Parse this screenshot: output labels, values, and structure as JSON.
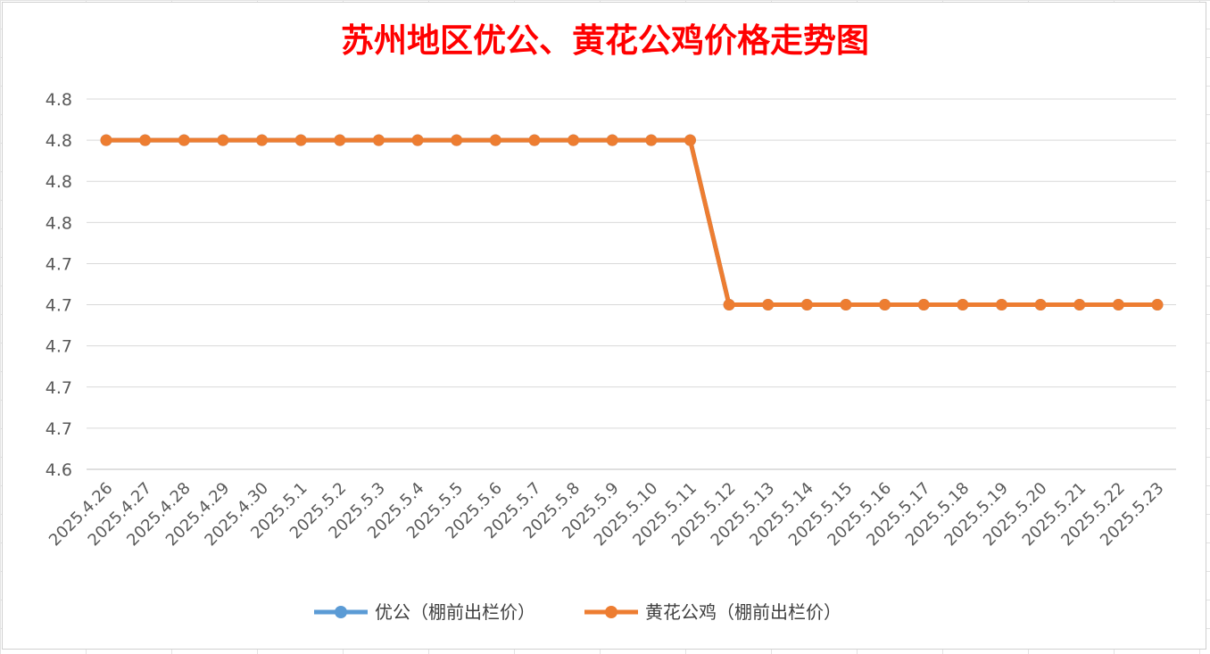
{
  "chart_data": {
    "type": "line",
    "title": "苏州地区优公、黄花公鸡价格走势图",
    "xlabel": "",
    "ylabel": "",
    "categories": [
      "2025.4.26",
      "2025.4.27",
      "2025.4.28",
      "2025.4.29",
      "2025.4.30",
      "2025.5.1",
      "2025.5.2",
      "2025.5.3",
      "2025.5.4",
      "2025.5.5",
      "2025.5.6",
      "2025.5.7",
      "2025.5.8",
      "2025.5.9",
      "2025.5.10",
      "2025.5.11",
      "2025.5.12",
      "2025.5.13",
      "2025.5.14",
      "2025.5.15",
      "2025.5.16",
      "2025.5.17",
      "2025.5.18",
      "2025.5.19",
      "2025.5.20",
      "2025.5.21",
      "2025.5.22",
      "2025.5.23"
    ],
    "y_ticks": [
      "4.6",
      "4.7",
      "4.7",
      "4.7",
      "4.7",
      "4.7",
      "4.8",
      "4.8",
      "4.8",
      "4.8"
    ],
    "ylim": [
      4.6,
      4.825
    ],
    "grid": true,
    "legend_position": "bottom",
    "series": [
      {
        "name": "优公（棚前出栏价）",
        "color": "#5b9bd5",
        "values": [
          4.8,
          4.8,
          4.8,
          4.8,
          4.8,
          4.8,
          4.8,
          4.8,
          4.8,
          4.8,
          4.8,
          4.8,
          4.8,
          4.8,
          4.8,
          4.8,
          4.7,
          4.7,
          4.7,
          4.7,
          4.7,
          4.7,
          4.7,
          4.7,
          4.7,
          4.7,
          4.7,
          4.7
        ]
      },
      {
        "name": "黄花公鸡（棚前出栏价）",
        "color": "#ed7d31",
        "values": [
          4.8,
          4.8,
          4.8,
          4.8,
          4.8,
          4.8,
          4.8,
          4.8,
          4.8,
          4.8,
          4.8,
          4.8,
          4.8,
          4.8,
          4.8,
          4.8,
          4.7,
          4.7,
          4.7,
          4.7,
          4.7,
          4.7,
          4.7,
          4.7,
          4.7,
          4.7,
          4.7,
          4.7
        ]
      }
    ]
  }
}
